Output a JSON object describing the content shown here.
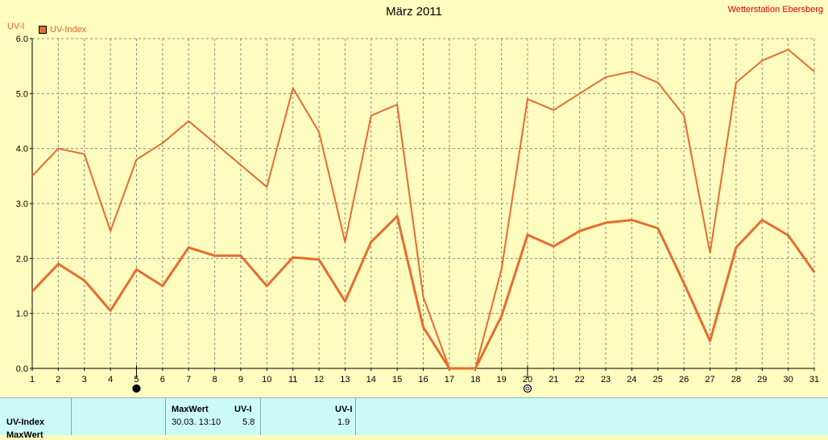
{
  "title": "März 2011",
  "station": "Wetterstation Ebersberg",
  "y_unit": "UV-I",
  "colors": {
    "series": "#e76b30",
    "background": "#fefcbe",
    "table": "#ccfbf7"
  },
  "chart_data": {
    "type": "line",
    "title": "März 2011",
    "ylabel": "UV-I",
    "xlabel": "",
    "ylim": [
      0,
      6
    ],
    "y_ticks": [
      "0.0",
      "1.0",
      "2.0",
      "3.0",
      "4.0",
      "5.0",
      "6.0"
    ],
    "x": [
      1,
      2,
      3,
      4,
      5,
      6,
      7,
      8,
      9,
      10,
      11,
      12,
      13,
      14,
      15,
      16,
      17,
      18,
      19,
      20,
      21,
      22,
      23,
      24,
      25,
      26,
      27,
      28,
      29,
      30,
      31
    ],
    "grid": true,
    "legend": "top-left",
    "series": [
      {
        "name": "UV-Index",
        "style": "thin",
        "values": [
          3.5,
          4.0,
          3.9,
          2.5,
          3.8,
          4.1,
          4.5,
          4.1,
          3.7,
          3.3,
          5.1,
          4.3,
          2.3,
          4.6,
          4.8,
          1.3,
          0.0,
          0.0,
          1.8,
          4.9,
          4.7,
          5.0,
          5.3,
          5.4,
          5.2,
          4.6,
          2.1,
          5.2,
          5.6,
          5.8,
          5.4
        ]
      },
      {
        "name": "",
        "style": "thick",
        "values": [
          1.4,
          1.9,
          1.6,
          1.05,
          1.8,
          1.5,
          2.2,
          2.05,
          2.05,
          1.5,
          2.02,
          1.98,
          1.22,
          2.3,
          2.77,
          0.75,
          0.0,
          0.0,
          0.95,
          2.43,
          2.22,
          2.5,
          2.65,
          2.7,
          2.55,
          1.55,
          0.5,
          2.2,
          2.7,
          2.42,
          1.75
        ]
      }
    ],
    "markers": [
      {
        "day": 5,
        "icon": "filled-circle-icon"
      },
      {
        "day": 20,
        "icon": "hollow-circle-icon"
      }
    ]
  },
  "table": {
    "row_label": "UV-Index",
    "next_row_label": "MaxWert",
    "col2_header": "MaxWert",
    "col2_unit": "UV-I",
    "col2_time": "30.03.  13:10",
    "col2_value": "5.8",
    "col3_unit": "UV-I",
    "col3_value": "1.9"
  }
}
